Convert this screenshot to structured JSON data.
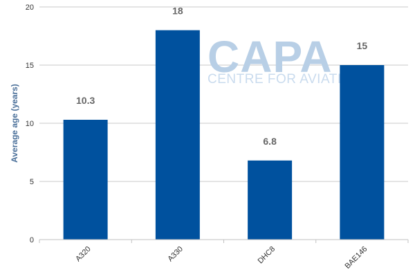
{
  "chart_data": {
    "type": "bar",
    "categories": [
      "A320",
      "A330",
      "DHC8",
      "BAE146"
    ],
    "values": [
      10.3,
      18,
      6.8,
      15
    ],
    "data_labels": [
      "10.3",
      "18",
      "6.8",
      "15"
    ],
    "title": "",
    "xlabel": "",
    "ylabel": "Average age (years)",
    "ylim": [
      0,
      20
    ],
    "yticks": [
      0,
      5,
      10,
      15,
      20
    ],
    "grid": true,
    "bar_color": "#00519e"
  },
  "watermark": {
    "logo": "CAPA",
    "tagline": "CENTRE FOR AVIATION"
  }
}
